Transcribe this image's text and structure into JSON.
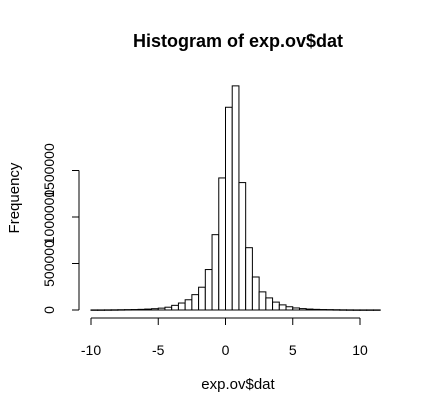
{
  "chart_data": {
    "type": "bar",
    "title": "Histogram of exp.ov$dat",
    "xlabel": "exp.ov$dat",
    "ylabel": "Frequency",
    "xlim": [
      -10,
      11.5
    ],
    "ylim": [
      0,
      2350000
    ],
    "x_ticks": [
      -10,
      -5,
      0,
      5,
      10
    ],
    "y_ticks": [
      0,
      500000,
      1000000,
      1500000
    ],
    "bin_width": 0.5,
    "bins": [
      {
        "x0": -10.0,
        "count": 1000
      },
      {
        "x0": -9.5,
        "count": 1000
      },
      {
        "x0": -9.0,
        "count": 1500
      },
      {
        "x0": -8.5,
        "count": 2000
      },
      {
        "x0": -8.0,
        "count": 3000
      },
      {
        "x0": -7.5,
        "count": 4000
      },
      {
        "x0": -7.0,
        "count": 5000
      },
      {
        "x0": -6.5,
        "count": 7000
      },
      {
        "x0": -6.0,
        "count": 10000
      },
      {
        "x0": -5.5,
        "count": 14000
      },
      {
        "x0": -5.0,
        "count": 20000
      },
      {
        "x0": -4.5,
        "count": 30000
      },
      {
        "x0": -4.0,
        "count": 50000
      },
      {
        "x0": -3.5,
        "count": 75000
      },
      {
        "x0": -3.0,
        "count": 110000
      },
      {
        "x0": -2.5,
        "count": 165000
      },
      {
        "x0": -2.0,
        "count": 245000
      },
      {
        "x0": -1.5,
        "count": 435000
      },
      {
        "x0": -1.0,
        "count": 810000
      },
      {
        "x0": -0.5,
        "count": 1420000
      },
      {
        "x0": 0.0,
        "count": 2180000
      },
      {
        "x0": 0.5,
        "count": 2410000
      },
      {
        "x0": 1.0,
        "count": 1370000
      },
      {
        "x0": 1.5,
        "count": 670000
      },
      {
        "x0": 2.0,
        "count": 355000
      },
      {
        "x0": 2.5,
        "count": 195000
      },
      {
        "x0": 3.0,
        "count": 130000
      },
      {
        "x0": 3.5,
        "count": 85000
      },
      {
        "x0": 4.0,
        "count": 55000
      },
      {
        "x0": 4.5,
        "count": 35000
      },
      {
        "x0": 5.0,
        "count": 22000
      },
      {
        "x0": 5.5,
        "count": 15000
      },
      {
        "x0": 6.0,
        "count": 10000
      },
      {
        "x0": 6.5,
        "count": 7000
      },
      {
        "x0": 7.0,
        "count": 5000
      },
      {
        "x0": 7.5,
        "count": 4000
      },
      {
        "x0": 8.0,
        "count": 3000
      },
      {
        "x0": 8.5,
        "count": 2000
      },
      {
        "x0": 9.0,
        "count": 1500
      },
      {
        "x0": 9.5,
        "count": 1000
      },
      {
        "x0": 10.0,
        "count": 1000
      },
      {
        "x0": 10.5,
        "count": 1000
      },
      {
        "x0": 11.0,
        "count": 1000
      }
    ]
  }
}
